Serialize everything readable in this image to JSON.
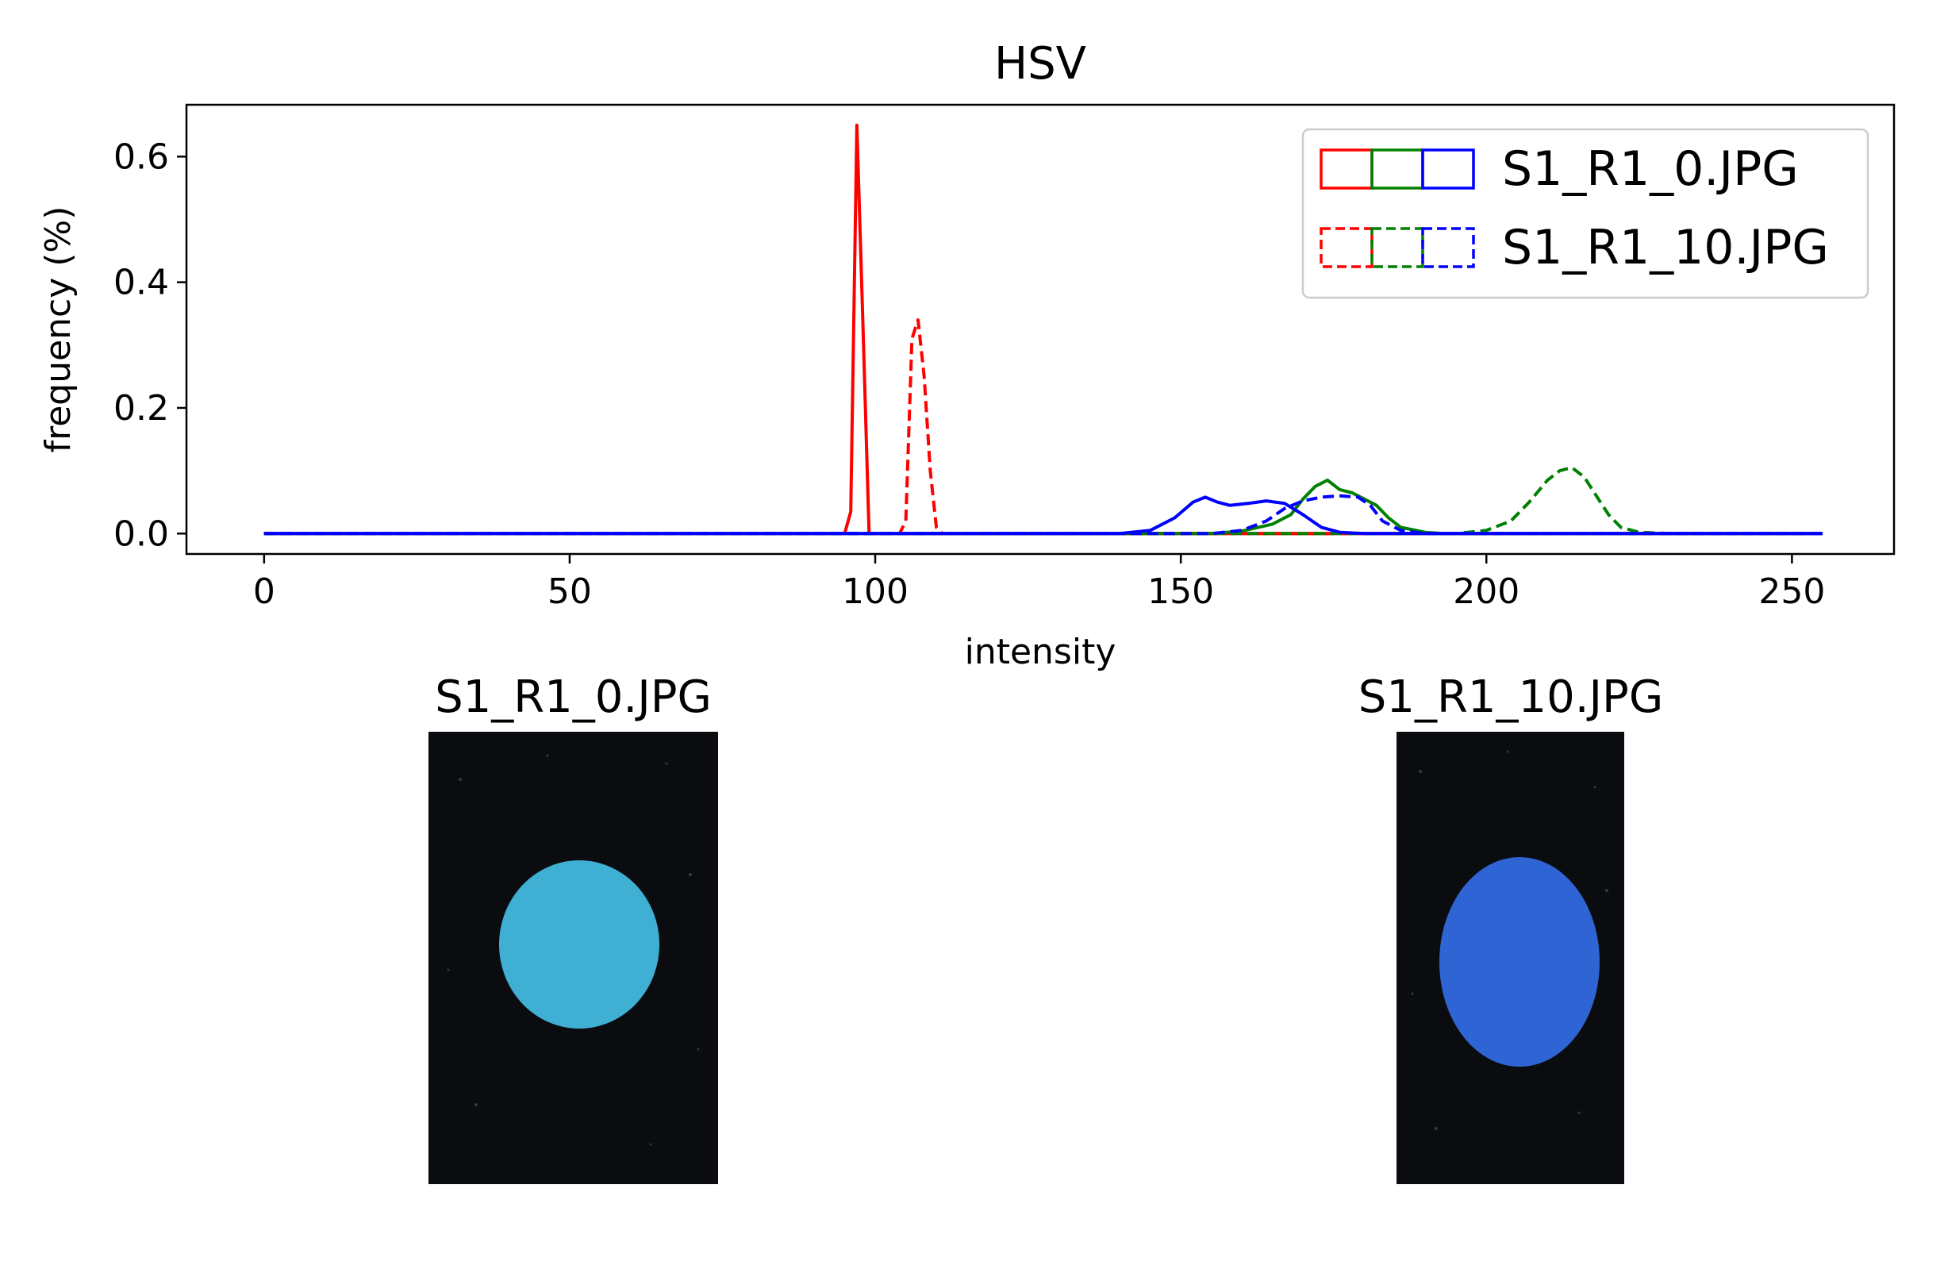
{
  "chart_data": {
    "type": "line",
    "title": "HSV",
    "xlabel": "intensity",
    "ylabel": "frequency (%)",
    "xlim": [
      -12.7,
      266.7
    ],
    "ylim": [
      -0.0325,
      0.6825
    ],
    "xticks": [
      0,
      50,
      100,
      150,
      200,
      250
    ],
    "yticks": [
      0.0,
      0.2,
      0.4,
      0.6
    ],
    "grid": false,
    "legend_position": "top-right",
    "legend": [
      {
        "label": "S1_R1_0.JPG",
        "style": "solid",
        "colors": [
          "#ff0000",
          "#008000",
          "#0000ff"
        ]
      },
      {
        "label": "S1_R1_10.JPG",
        "style": "dashed",
        "colors": [
          "#ff0000",
          "#008000",
          "#0000ff"
        ]
      }
    ],
    "series": [
      {
        "image": "S1_R1_0.JPG",
        "channel": "H",
        "color": "#ff0000",
        "style": "solid",
        "points": [
          [
            0,
            0
          ],
          [
            95,
            0
          ],
          [
            96,
            0.035
          ],
          [
            97,
            0.65
          ],
          [
            98,
            0.33
          ],
          [
            99,
            0
          ],
          [
            255,
            0
          ]
        ]
      },
      {
        "image": "S1_R1_10.JPG",
        "channel": "H",
        "color": "#ff0000",
        "style": "dashed",
        "points": [
          [
            0,
            0
          ],
          [
            104,
            0
          ],
          [
            105,
            0.02
          ],
          [
            106,
            0.31
          ],
          [
            107,
            0.34
          ],
          [
            108,
            0.25
          ],
          [
            109,
            0.1
          ],
          [
            110,
            0.01
          ],
          [
            111,
            0
          ],
          [
            255,
            0
          ]
        ]
      },
      {
        "image": "S1_R1_0.JPG",
        "channel": "S",
        "color": "#008000",
        "style": "solid",
        "points": [
          [
            0,
            0
          ],
          [
            155,
            0
          ],
          [
            160,
            0.004
          ],
          [
            165,
            0.015
          ],
          [
            168,
            0.03
          ],
          [
            170,
            0.055
          ],
          [
            172,
            0.075
          ],
          [
            174,
            0.085
          ],
          [
            176,
            0.07
          ],
          [
            178,
            0.065
          ],
          [
            180,
            0.055
          ],
          [
            182,
            0.045
          ],
          [
            184,
            0.025
          ],
          [
            186,
            0.01
          ],
          [
            190,
            0.002
          ],
          [
            193,
            0
          ],
          [
            255,
            0
          ]
        ]
      },
      {
        "image": "S1_R1_10.JPG",
        "channel": "S",
        "color": "#008000",
        "style": "dashed",
        "points": [
          [
            0,
            0
          ],
          [
            195,
            0
          ],
          [
            200,
            0.005
          ],
          [
            204,
            0.02
          ],
          [
            207,
            0.05
          ],
          [
            210,
            0.085
          ],
          [
            212,
            0.1
          ],
          [
            214,
            0.105
          ],
          [
            216,
            0.09
          ],
          [
            218,
            0.06
          ],
          [
            220,
            0.03
          ],
          [
            222,
            0.01
          ],
          [
            225,
            0.002
          ],
          [
            230,
            0
          ],
          [
            255,
            0
          ]
        ]
      },
      {
        "image": "S1_R1_0.JPG",
        "channel": "V",
        "color": "#0000ff",
        "style": "solid",
        "points": [
          [
            0,
            0
          ],
          [
            140,
            0
          ],
          [
            145,
            0.005
          ],
          [
            149,
            0.025
          ],
          [
            152,
            0.05
          ],
          [
            154,
            0.058
          ],
          [
            156,
            0.05
          ],
          [
            158,
            0.045
          ],
          [
            161,
            0.048
          ],
          [
            164,
            0.052
          ],
          [
            167,
            0.048
          ],
          [
            170,
            0.03
          ],
          [
            173,
            0.01
          ],
          [
            176,
            0.002
          ],
          [
            180,
            0
          ],
          [
            255,
            0
          ]
        ]
      },
      {
        "image": "S1_R1_10.JPG",
        "channel": "V",
        "color": "#0000ff",
        "style": "dashed",
        "points": [
          [
            0,
            0
          ],
          [
            155,
            0
          ],
          [
            160,
            0.005
          ],
          [
            164,
            0.02
          ],
          [
            167,
            0.04
          ],
          [
            170,
            0.052
          ],
          [
            173,
            0.058
          ],
          [
            176,
            0.06
          ],
          [
            179,
            0.058
          ],
          [
            181,
            0.045
          ],
          [
            183,
            0.02
          ],
          [
            186,
            0.005
          ],
          [
            190,
            0
          ],
          [
            255,
            0
          ]
        ]
      }
    ]
  },
  "thumbnails": [
    {
      "title": "S1_R1_0.JPG",
      "disc_color": "#3fb0d4"
    },
    {
      "title": "S1_R1_10.JPG",
      "disc_color": "#2f64d4"
    }
  ]
}
